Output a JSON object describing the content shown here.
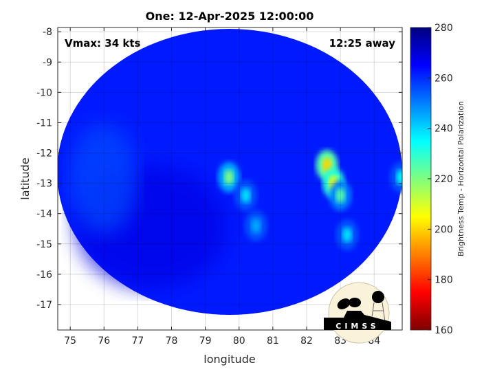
{
  "chart_data": {
    "type": "heatmap",
    "title": "One: 12-Apr-2025 12:00:00",
    "xlabel": "longitude",
    "ylabel": "latitude",
    "xlim": [
      74.63,
      84.83
    ],
    "ylim": [
      -17.84,
      -7.86
    ],
    "xticks": [
      "75",
      "76",
      "77",
      "78",
      "79",
      "80",
      "81",
      "82",
      "83",
      "84"
    ],
    "yticks": [
      "-8",
      "-9",
      "-10",
      "-11",
      "-12",
      "-13",
      "-14",
      "-15",
      "-16",
      "-17"
    ],
    "grid": true,
    "colorbar": {
      "label": "Brightness Temp - Horizontal Polarization",
      "range": [
        160,
        280
      ],
      "ticks": [
        "280",
        "260",
        "240",
        "220",
        "200",
        "180",
        "160"
      ],
      "colormap": "jet"
    },
    "background_tb": 262,
    "features": [
      {
        "lon": 82.6,
        "lat": -12.4,
        "tb": 200
      },
      {
        "lon": 82.8,
        "lat": -13.0,
        "tb": 205
      },
      {
        "lon": 83.0,
        "lat": -13.4,
        "tb": 225
      },
      {
        "lon": 79.7,
        "lat": -12.8,
        "tb": 220
      },
      {
        "lon": 80.2,
        "lat": -13.4,
        "tb": 238
      },
      {
        "lon": 83.2,
        "lat": -14.7,
        "tb": 238
      },
      {
        "lon": 80.5,
        "lat": -14.4,
        "tb": 245
      },
      {
        "lon": 84.8,
        "lat": -12.8,
        "tb": 235
      }
    ],
    "annotations": {
      "vmax": "Vmax: 34 kts",
      "time_away": "12:25 away"
    }
  },
  "logo": {
    "text": "CIMSS"
  }
}
